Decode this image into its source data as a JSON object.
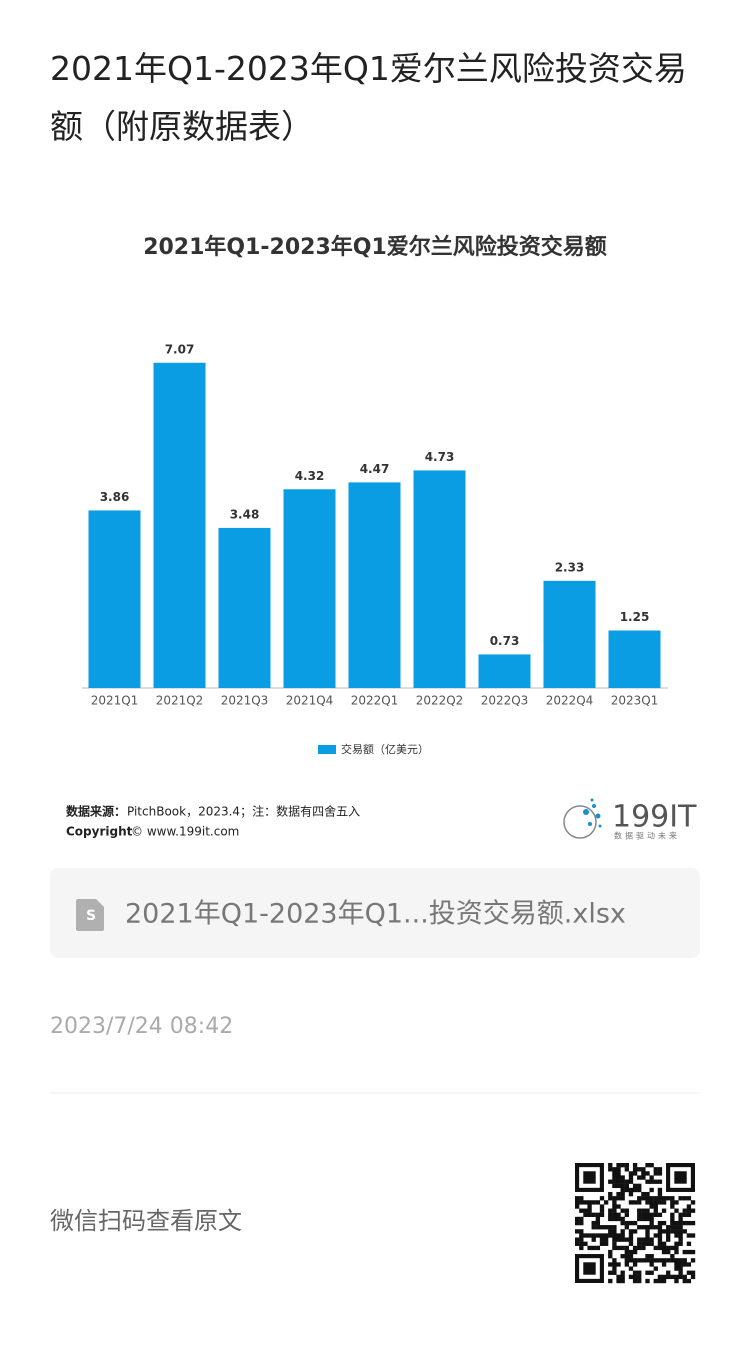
{
  "header": {
    "title": "2021年Q1-2023年Q1爱尔兰风险投资交易额（附原数据表）"
  },
  "chart_data": {
    "type": "bar",
    "title": "2021年Q1-2023年Q1爱尔兰风险投资交易额",
    "categories": [
      "2021Q1",
      "2021Q2",
      "2021Q3",
      "2021Q4",
      "2022Q1",
      "2022Q2",
      "2022Q3",
      "2022Q4",
      "2023Q1"
    ],
    "series": [
      {
        "name": "交易额（亿美元）",
        "color": "#0a9de3",
        "values": [
          3.86,
          7.07,
          3.48,
          4.32,
          4.47,
          4.73,
          0.73,
          2.33,
          1.25
        ]
      }
    ],
    "legend": "bottom"
  },
  "source": {
    "label": "数据来源：",
    "text": "PitchBook，2023.4；注：数据有四舍五入",
    "copyright_label": "Copyright",
    "copyright_text": "© www.199it.com"
  },
  "logo": {
    "name": "199IT",
    "slogan": "数据驱动未来"
  },
  "attachment": {
    "filename": "2021年Q1-2023年Q1...投资交易额.xlsx"
  },
  "date": "2023/7/24 08:42",
  "footer": {
    "text": "微信扫码查看原文"
  }
}
